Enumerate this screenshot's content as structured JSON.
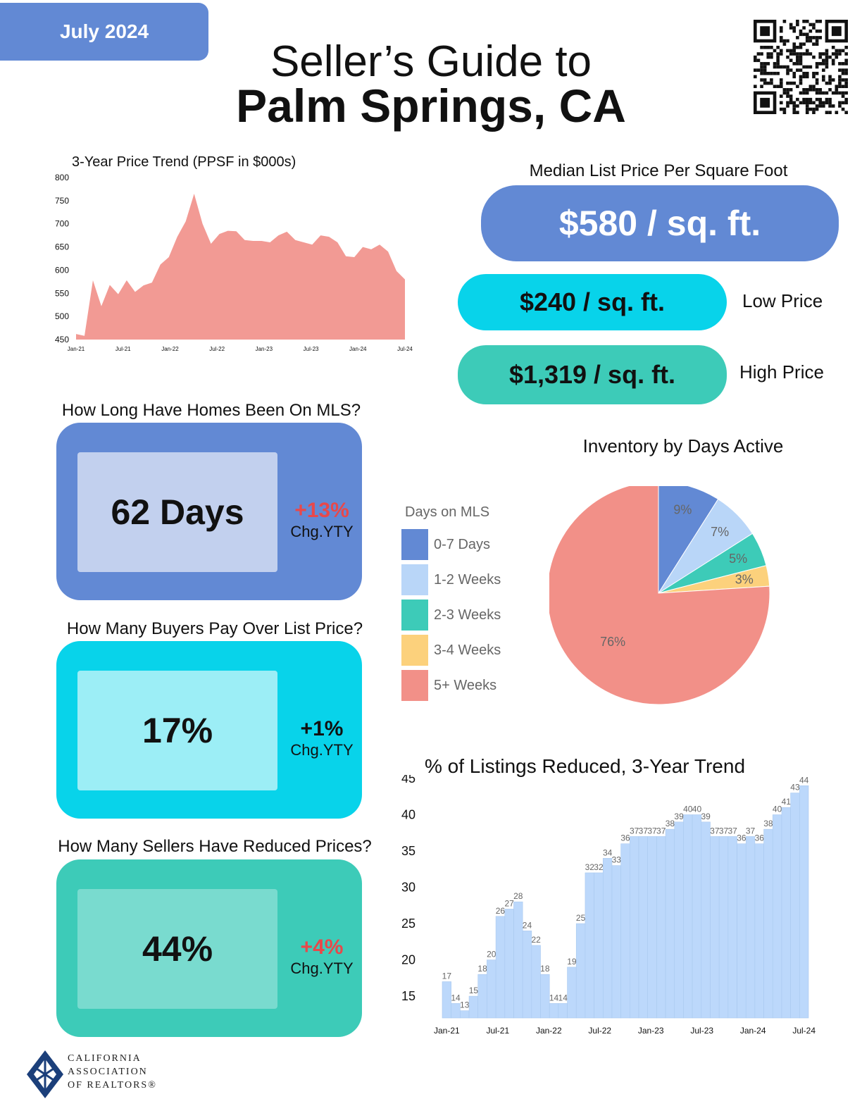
{
  "header": {
    "date_tab": "July 2024",
    "title_line1": "Seller’s Guide to",
    "title_line2": "Palm Springs, CA"
  },
  "price_trend": {
    "chart_data": {
      "type": "area",
      "title": "3-Year Price Trend (PPSF in $000s)",
      "ylim": [
        450,
        800
      ],
      "y_ticks": [
        "800",
        "750",
        "700",
        "650",
        "600",
        "550",
        "500",
        "450"
      ],
      "x_ticks": [
        "Jan-21",
        "Jul-21",
        "Jan-22",
        "Jul-22",
        "Jan-23",
        "Jul-23",
        "Jan-24",
        "Jul-24"
      ],
      "values": [
        462,
        458,
        578,
        522,
        568,
        548,
        578,
        553,
        567,
        573,
        612,
        628,
        672,
        705,
        765,
        700,
        657,
        678,
        685,
        684,
        665,
        663,
        663,
        660,
        675,
        683,
        665,
        660,
        655,
        675,
        672,
        660,
        630,
        628,
        650,
        645,
        655,
        640,
        598,
        580
      ],
      "color": "#f29a94"
    }
  },
  "median_price": {
    "label": "Median List Price Per Square Foot",
    "value": "$580 / sq. ft.",
    "low_value": "$240 / sq. ft.",
    "low_label": "Low Price",
    "high_value": "$1,319 / sq. ft.",
    "high_label": "High Price"
  },
  "mls_days": {
    "question": "How Long Have Homes Been On MLS?",
    "value": "62 Days",
    "change": "+13%",
    "change_label": "Chg.YTY"
  },
  "over_list": {
    "question": "How Many Buyers Pay Over List Price?",
    "value": "17%",
    "change": "+1%",
    "change_label": "Chg.YTY"
  },
  "reduced": {
    "question": "How Many Sellers Have Reduced Prices?",
    "value": "44%",
    "change": "+4%",
    "change_label": "Chg.YTY"
  },
  "inventory": {
    "chart_data": {
      "type": "pie",
      "title": "Inventory by Days Active",
      "legend_title": "Days on MLS",
      "legend_placement": "left",
      "categories": [
        "0-7 Days",
        "1-2 Weeks",
        "2-3 Weeks",
        "3-4 Weeks",
        "5+ Weeks"
      ],
      "values": [
        9,
        7,
        5,
        3,
        76
      ],
      "labels": [
        "9%",
        "7%",
        "5%",
        "3%",
        "76%"
      ],
      "colors": [
        "#6289d4",
        "#b9d6f8",
        "#3dcbb8",
        "#fcd17c",
        "#f29088"
      ]
    }
  },
  "listings_reduced": {
    "chart_data": {
      "type": "bar",
      "title": "% of Listings Reduced, 3-Year Trend",
      "ylim": [
        12,
        45
      ],
      "y_ticks": [
        "45",
        "40",
        "35",
        "30",
        "25",
        "20",
        "15"
      ],
      "x_ticks": [
        "Jan-21",
        "Jul-21",
        "Jan-22",
        "Jul-22",
        "Jan-23",
        "Jul-23",
        "Jan-24",
        "Jul-24"
      ],
      "values": [
        17,
        14,
        13,
        15,
        18,
        20,
        26,
        27,
        28,
        24,
        22,
        18,
        14,
        14,
        19,
        25,
        32,
        32,
        34,
        33,
        36,
        37,
        37,
        37,
        37,
        38,
        39,
        40,
        40,
        39,
        37,
        37,
        37,
        36,
        37,
        36,
        38,
        40,
        41,
        43,
        44
      ],
      "color": "#bcd8fb"
    }
  },
  "footer": {
    "org_line1": "CALIFORNIA",
    "org_line2": "ASSOCIATION",
    "org_line3": "OF REALTORS®"
  },
  "colors": {
    "blue": "#6289d4",
    "cyan": "#08d3ea",
    "teal": "#3dcbb8",
    "red_change": "#e8484a"
  }
}
